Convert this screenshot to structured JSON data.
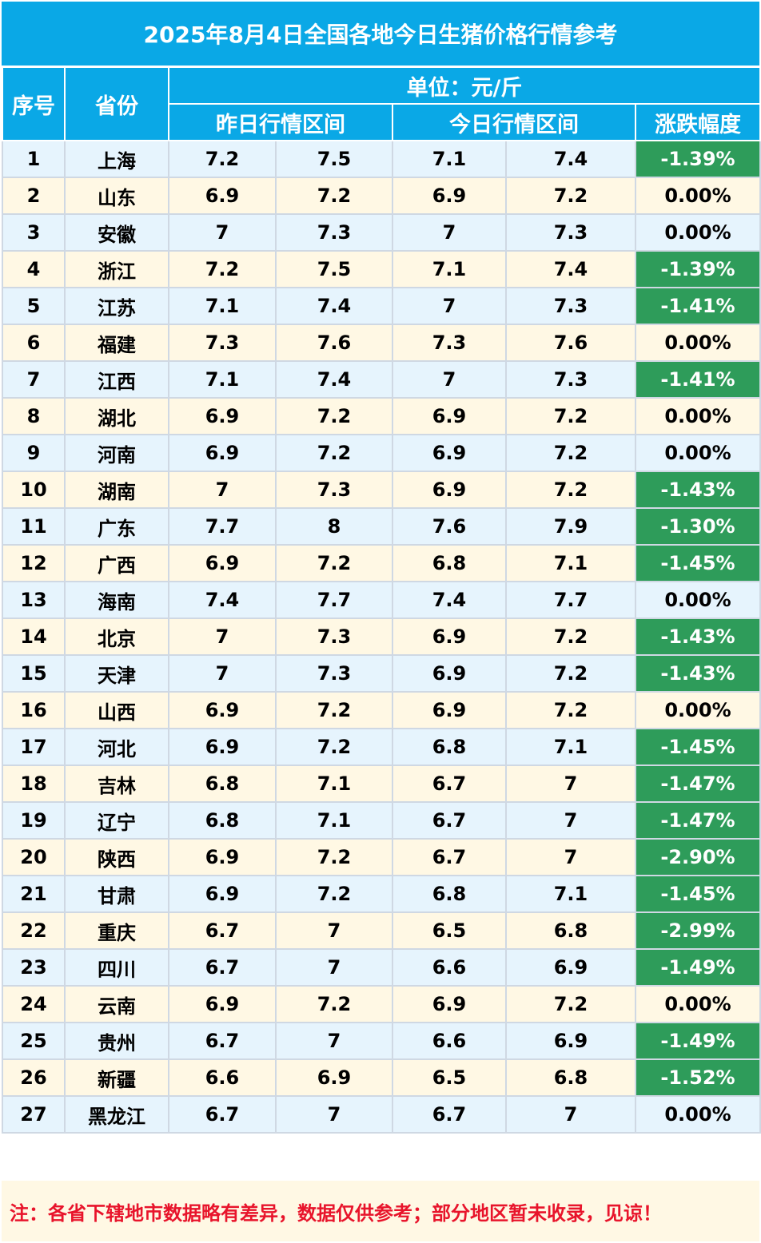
{
  "title": "2025年8月4日全国各地今日生猪价格行情参考",
  "header": {
    "index": "序号",
    "province": "省份",
    "unit": "单位：元/斤",
    "yesterday": "昨日行情区间",
    "today": "今日行情区间",
    "change": "涨跌幅度"
  },
  "rows": [
    {
      "no": "1",
      "province": "上海",
      "y_low": "7.2",
      "y_high": "7.5",
      "t_low": "7.1",
      "t_high": "7.4",
      "change": "-1.39%"
    },
    {
      "no": "2",
      "province": "山东",
      "y_low": "6.9",
      "y_high": "7.2",
      "t_low": "6.9",
      "t_high": "7.2",
      "change": "0.00%"
    },
    {
      "no": "3",
      "province": "安徽",
      "y_low": "7",
      "y_high": "7.3",
      "t_low": "7",
      "t_high": "7.3",
      "change": "0.00%"
    },
    {
      "no": "4",
      "province": "浙江",
      "y_low": "7.2",
      "y_high": "7.5",
      "t_low": "7.1",
      "t_high": "7.4",
      "change": "-1.39%"
    },
    {
      "no": "5",
      "province": "江苏",
      "y_low": "7.1",
      "y_high": "7.4",
      "t_low": "7",
      "t_high": "7.3",
      "change": "-1.41%"
    },
    {
      "no": "6",
      "province": "福建",
      "y_low": "7.3",
      "y_high": "7.6",
      "t_low": "7.3",
      "t_high": "7.6",
      "change": "0.00%"
    },
    {
      "no": "7",
      "province": "江西",
      "y_low": "7.1",
      "y_high": "7.4",
      "t_low": "7",
      "t_high": "7.3",
      "change": "-1.41%"
    },
    {
      "no": "8",
      "province": "湖北",
      "y_low": "6.9",
      "y_high": "7.2",
      "t_low": "6.9",
      "t_high": "7.2",
      "change": "0.00%"
    },
    {
      "no": "9",
      "province": "河南",
      "y_low": "6.9",
      "y_high": "7.2",
      "t_low": "6.9",
      "t_high": "7.2",
      "change": "0.00%"
    },
    {
      "no": "10",
      "province": "湖南",
      "y_low": "7",
      "y_high": "7.3",
      "t_low": "6.9",
      "t_high": "7.2",
      "change": "-1.43%"
    },
    {
      "no": "11",
      "province": "广东",
      "y_low": "7.7",
      "y_high": "8",
      "t_low": "7.6",
      "t_high": "7.9",
      "change": "-1.30%"
    },
    {
      "no": "12",
      "province": "广西",
      "y_low": "6.9",
      "y_high": "7.2",
      "t_low": "6.8",
      "t_high": "7.1",
      "change": "-1.45%"
    },
    {
      "no": "13",
      "province": "海南",
      "y_low": "7.4",
      "y_high": "7.7",
      "t_low": "7.4",
      "t_high": "7.7",
      "change": "0.00%"
    },
    {
      "no": "14",
      "province": "北京",
      "y_low": "7",
      "y_high": "7.3",
      "t_low": "6.9",
      "t_high": "7.2",
      "change": "-1.43%"
    },
    {
      "no": "15",
      "province": "天津",
      "y_low": "7",
      "y_high": "7.3",
      "t_low": "6.9",
      "t_high": "7.2",
      "change": "-1.43%"
    },
    {
      "no": "16",
      "province": "山西",
      "y_low": "6.9",
      "y_high": "7.2",
      "t_low": "6.9",
      "t_high": "7.2",
      "change": "0.00%"
    },
    {
      "no": "17",
      "province": "河北",
      "y_low": "6.9",
      "y_high": "7.2",
      "t_low": "6.8",
      "t_high": "7.1",
      "change": "-1.45%"
    },
    {
      "no": "18",
      "province": "吉林",
      "y_low": "6.8",
      "y_high": "7.1",
      "t_low": "6.7",
      "t_high": "7",
      "change": "-1.47%"
    },
    {
      "no": "19",
      "province": "辽宁",
      "y_low": "6.8",
      "y_high": "7.1",
      "t_low": "6.7",
      "t_high": "7",
      "change": "-1.47%"
    },
    {
      "no": "20",
      "province": "陕西",
      "y_low": "6.9",
      "y_high": "7.2",
      "t_low": "6.7",
      "t_high": "7",
      "change": "-2.90%"
    },
    {
      "no": "21",
      "province": "甘肃",
      "y_low": "6.9",
      "y_high": "7.2",
      "t_low": "6.8",
      "t_high": "7.1",
      "change": "-1.45%"
    },
    {
      "no": "22",
      "province": "重庆",
      "y_low": "6.7",
      "y_high": "7",
      "t_low": "6.5",
      "t_high": "6.8",
      "change": "-2.99%"
    },
    {
      "no": "23",
      "province": "四川",
      "y_low": "6.7",
      "y_high": "7",
      "t_low": "6.6",
      "t_high": "6.9",
      "change": "-1.49%"
    },
    {
      "no": "24",
      "province": "云南",
      "y_low": "6.9",
      "y_high": "7.2",
      "t_low": "6.9",
      "t_high": "7.2",
      "change": "0.00%"
    },
    {
      "no": "25",
      "province": "贵州",
      "y_low": "6.7",
      "y_high": "7",
      "t_low": "6.6",
      "t_high": "6.9",
      "change": "-1.49%"
    },
    {
      "no": "26",
      "province": "新疆",
      "y_low": "6.6",
      "y_high": "6.9",
      "t_low": "6.5",
      "t_high": "6.8",
      "change": "-1.52%"
    },
    {
      "no": "27",
      "province": "黑龙江",
      "y_low": "6.7",
      "y_high": "7",
      "t_low": "6.7",
      "t_high": "7",
      "change": "0.00%"
    }
  ],
  "note": "注：各省下辖地市数据略有差异，数据仅供参考；部分地区暂未收录，见谅！",
  "colors": {
    "header_bg": "#0AA8E6",
    "row_blue": "#E6F4FD",
    "row_cream": "#FFF8E4",
    "down_bg": "#2E9C5A",
    "note_text": "#E8142B"
  }
}
